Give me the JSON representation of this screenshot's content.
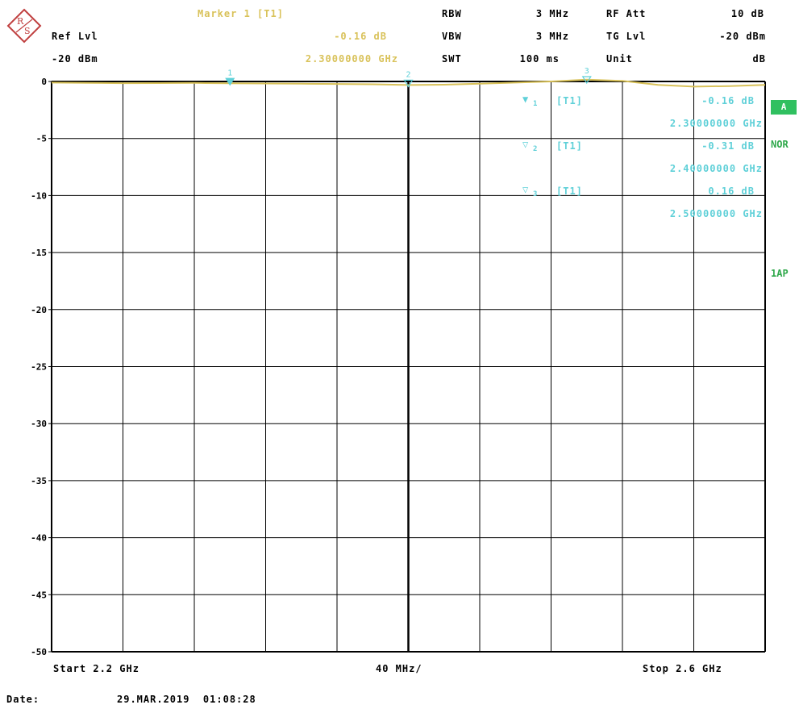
{
  "header": {
    "marker_title": "Marker 1 [T1]",
    "marker_level": "-0.16 dB",
    "marker_freq": "2.30000000 GHz",
    "ref_lvl_label": "Ref Lvl",
    "ref_lvl_value": "-20 dBm",
    "rbw_label": "RBW",
    "rbw_value": "3 MHz",
    "vbw_label": "VBW",
    "vbw_value": "3 MHz",
    "swt_label": "SWT",
    "swt_value": "100 ms",
    "rfatt_label": "RF Att",
    "rfatt_value": "10 dB",
    "tglvl_label": "TG Lvl",
    "tglvl_value": "-20 dBm",
    "unit_label": "Unit",
    "unit_value": "dB"
  },
  "markers": [
    {
      "id": "1",
      "sub": "1",
      "trace": "[T1]",
      "level": "-0.16 dB",
      "freq": "2.30000000 GHz",
      "x": 2.3,
      "y": -0.16,
      "filled": true
    },
    {
      "id": "2",
      "sub": "2",
      "trace": "[T1]",
      "level": "-0.31 dB",
      "freq": "2.40000000 GHz",
      "x": 2.4,
      "y": -0.31,
      "filled": false
    },
    {
      "id": "3",
      "sub": "3",
      "trace": "[T1]",
      "level": "0.16 dB",
      "freq": "2.50000000 GHz",
      "x": 2.5,
      "y": 0.16,
      "filled": false
    }
  ],
  "side_labels": {
    "a": "A",
    "nor": "NOR",
    "ap": "1AP"
  },
  "footer": {
    "start": "Start 2.2 GHz",
    "span": "40 MHz/",
    "stop": "Stop 2.6 GHz",
    "date_label": "Date:",
    "date_value": "29.MAR.2019  01:08:28"
  },
  "colors": {
    "trace": "#d9c25a",
    "marker": "#5fd0d8",
    "grid": "#000000",
    "badge": "#30c060"
  },
  "chart_data": {
    "type": "line",
    "xlim": [
      2.2,
      2.6
    ],
    "ylim": [
      -50,
      0
    ],
    "yticks": [
      0,
      -5,
      -10,
      -15,
      -20,
      -25,
      -30,
      -35,
      -40,
      -45,
      -50
    ],
    "ytick_labels": [
      "0",
      "-5",
      "-10",
      "-15",
      "-20",
      "-25",
      "-30",
      "-35",
      "-40",
      "-45",
      "-50"
    ],
    "grid": true,
    "series": [
      {
        "x": [
          2.2,
          2.22,
          2.24,
          2.26,
          2.28,
          2.3,
          2.32,
          2.34,
          2.36,
          2.38,
          2.4,
          2.42,
          2.44,
          2.46,
          2.48,
          2.5,
          2.52,
          2.54,
          2.56,
          2.58,
          2.6
        ],
        "y": [
          -0.1,
          -0.12,
          -0.15,
          -0.14,
          -0.13,
          -0.16,
          -0.18,
          -0.2,
          -0.22,
          -0.25,
          -0.31,
          -0.28,
          -0.2,
          -0.1,
          0.0,
          0.16,
          0.05,
          -0.3,
          -0.45,
          -0.4,
          -0.3
        ]
      }
    ]
  }
}
